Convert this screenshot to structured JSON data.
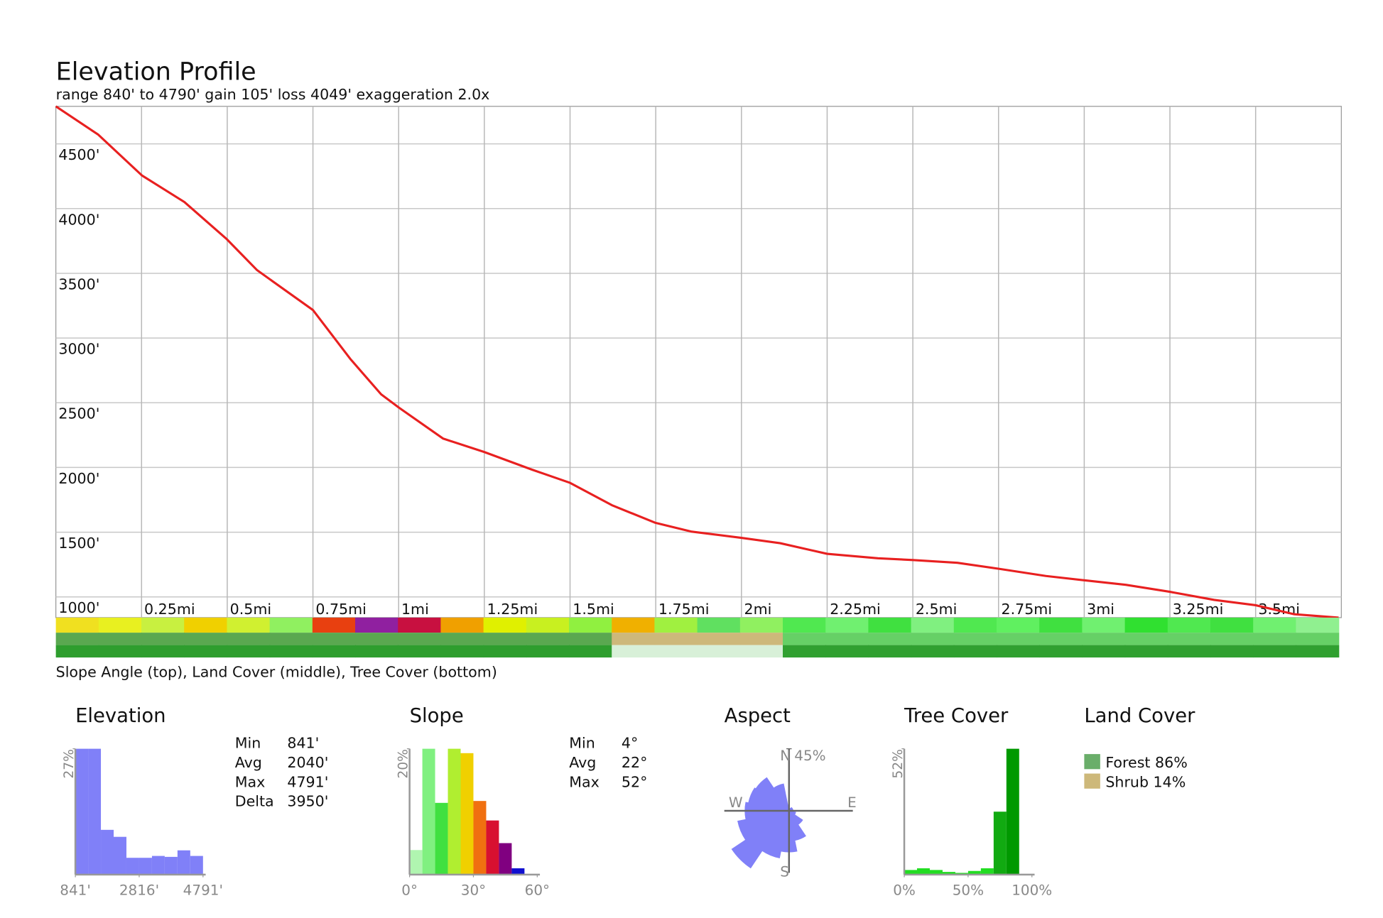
{
  "chart_data": [
    {
      "type": "line",
      "title": "Elevation Profile",
      "subtitle": "range 840' to 4790'  gain 105'  loss 4049'  exaggeration 2.0x",
      "x": [
        0,
        0.124,
        0.251,
        0.375,
        0.499,
        0.587,
        0.75,
        0.859,
        0.949,
        1.001,
        1.13,
        1.249,
        1.389,
        1.5,
        1.622,
        1.748,
        1.855,
        2.0,
        2.113,
        2.25,
        2.398,
        2.5,
        2.63,
        2.751,
        2.888,
        3.0,
        3.121,
        3.25,
        3.379,
        3.5,
        3.611,
        3.742
      ],
      "values": [
        4790,
        4571,
        4256,
        4051,
        3763,
        3524,
        3216,
        2839,
        2565,
        2462,
        2223,
        2120,
        1983,
        1881,
        1709,
        1573,
        1504,
        1456,
        1415,
        1333,
        1299,
        1285,
        1264,
        1217,
        1162,
        1128,
        1093,
        1039,
        977,
        936,
        867,
        840
      ],
      "color": "#e82020",
      "xlim": [
        0,
        3.75
      ],
      "xticks": [
        {
          "value": 0.25,
          "label": "0.25mi"
        },
        {
          "value": 0.5,
          "label": "0.5mi"
        },
        {
          "value": 0.75,
          "label": "0.75mi"
        },
        {
          "value": 1,
          "label": "1mi"
        },
        {
          "value": 1.25,
          "label": "1.25mi"
        },
        {
          "value": 1.5,
          "label": "1.5mi"
        },
        {
          "value": 1.75,
          "label": "1.75mi"
        },
        {
          "value": 2,
          "label": "2mi"
        },
        {
          "value": 2.25,
          "label": "2.25mi"
        },
        {
          "value": 2.5,
          "label": "2.5mi"
        },
        {
          "value": 2.75,
          "label": "2.75mi"
        },
        {
          "value": 3,
          "label": "3mi"
        },
        {
          "value": 3.25,
          "label": "3.25mi"
        },
        {
          "value": 3.5,
          "label": "3.5mi"
        }
      ],
      "ylim": [
        840,
        4790
      ],
      "yticks": [
        {
          "value": 1000,
          "label": "1000'"
        },
        {
          "value": 1500,
          "label": "1500'"
        },
        {
          "value": 2000,
          "label": "2000'"
        },
        {
          "value": 2500,
          "label": "2500'"
        },
        {
          "value": 3000,
          "label": "3000'"
        },
        {
          "value": 3500,
          "label": "3500'"
        },
        {
          "value": 4000,
          "label": "4000'"
        },
        {
          "value": 4500,
          "label": "4500'"
        }
      ],
      "grid": true,
      "strips": [
        [
          "#f0e020",
          "#e8f020",
          "#c8f040",
          "#f0d000",
          "#d0f030",
          "#90f060",
          "#e84010",
          "#9020a0",
          "#c81040",
          "#f0a000",
          "#e0f000",
          "#c8f020",
          "#90f040",
          "#f0b000",
          "#a0f040",
          "#60e060",
          "#90f060",
          "#50e850",
          "#70f070",
          "#40e040",
          "#80f080",
          "#50e850",
          "#60f060",
          "#40e040",
          "#70f070",
          "#30e030",
          "#50e850",
          "#40e040",
          "#70f070",
          "#90f090"
        ],
        [
          "#5aa850",
          "#5aa850",
          "#5aa850",
          "#5aa850",
          "#5aa850",
          "#5aa850",
          "#5aa850",
          "#5aa850",
          "#5aa850",
          "#5aa850",
          "#5aa850",
          "#5aa850",
          "#5aa850",
          "#cdb87a",
          "#cdb87a",
          "#cdb87a",
          "#cdb87a",
          "#66d066",
          "#66d066",
          "#66d066",
          "#66d066",
          "#66d066",
          "#66d066",
          "#66d066",
          "#66d066",
          "#66d066",
          "#66d066",
          "#66d066",
          "#66d066",
          "#66d066"
        ],
        [
          "#2e9e2e",
          "#2e9e2e",
          "#2e9e2e",
          "#2e9e2e",
          "#2e9e2e",
          "#2e9e2e",
          "#2e9e2e",
          "#2e9e2e",
          "#2e9e2e",
          "#2e9e2e",
          "#2e9e2e",
          "#2e9e2e",
          "#2e9e2e",
          "#d8f0d8",
          "#d8f0d8",
          "#d8f0d8",
          "#d8f0d8",
          "#30a030",
          "#30a030",
          "#30a030",
          "#30a030",
          "#30a030",
          "#30a030",
          "#30a030",
          "#30a030",
          "#30a030",
          "#30a030",
          "#30a030",
          "#30a030",
          "#30a030"
        ]
      ],
      "strip_caption": "Slope Angle (top), Land Cover (middle), Tree Cover (bottom)"
    },
    {
      "type": "histogram",
      "title": "Elevation",
      "bins": [
        841,
        1236,
        1631,
        2026,
        2421,
        2816,
        3211,
        3606,
        4001,
        4396,
        4791
      ],
      "values": [
        27,
        27,
        9.6,
        8.1,
        3.6,
        3.6,
        4.0,
        3.8,
        5.2,
        4.0
      ],
      "color": "#8080f8",
      "xlim": [
        841,
        4791
      ],
      "xticks": [
        {
          "value": 841,
          "label": "841'"
        },
        {
          "value": 2816,
          "label": "2816'"
        },
        {
          "value": 4791,
          "label": "4791'"
        }
      ],
      "ylim": [
        0,
        27
      ],
      "yticks": [
        {
          "value": 27,
          "label": "27%"
        }
      ],
      "stats": [
        [
          "Min",
          "841'"
        ],
        [
          "Avg",
          "2040'"
        ],
        [
          "Max",
          "4791'"
        ],
        [
          "Delta",
          "3950'"
        ]
      ]
    },
    {
      "type": "histogram",
      "title": "Slope",
      "bins": [
        0,
        6,
        12,
        18,
        24,
        30,
        36,
        42,
        48,
        54,
        60
      ],
      "values": [
        3.9,
        20,
        11.4,
        20,
        19.3,
        11.7,
        8.6,
        5,
        1,
        0
      ],
      "colors": [
        "#b0f5b0",
        "#80f080",
        "#40e040",
        "#b0ee30",
        "#f0d000",
        "#f07010",
        "#d81030",
        "#800080",
        "#1010d0",
        "#888888"
      ],
      "xlim": [
        0,
        60
      ],
      "xticks": [
        {
          "value": 0,
          "label": "0°"
        },
        {
          "value": 30,
          "label": "30°"
        },
        {
          "value": 60,
          "label": "60°"
        }
      ],
      "ylim": [
        0,
        20
      ],
      "yticks": [
        {
          "value": 20,
          "label": "20%"
        }
      ],
      "stats": [
        [
          "Min",
          "4°"
        ],
        [
          "Avg",
          "22°"
        ],
        [
          "Max",
          "52°"
        ]
      ]
    },
    {
      "type": "rose",
      "title": "Aspect",
      "values": [
        2,
        2,
        3,
        3,
        2,
        5,
        12,
        22,
        30,
        35,
        50,
        38,
        32,
        30,
        29,
        20
      ],
      "color": "#8080f8",
      "rlim": [
        0,
        45
      ],
      "rticks": [
        {
          "value": 45,
          "label": "45%"
        }
      ],
      "compass": [
        "N",
        "E",
        "S",
        "W"
      ]
    },
    {
      "type": "histogram",
      "title": "Tree Cover",
      "bins": [
        0,
        10,
        20,
        30,
        40,
        50,
        60,
        70,
        80,
        90,
        100
      ],
      "values": [
        1.9,
        2.6,
        1.9,
        1.1,
        0.7,
        1.5,
        2.6,
        26,
        52,
        0
      ],
      "colors": [
        "#22dd22",
        "#22dd22",
        "#22dd22",
        "#22dd22",
        "#22dd22",
        "#22dd22",
        "#22dd22",
        "#11aa11",
        "#009900",
        "#009900"
      ],
      "xlim": [
        0,
        100
      ],
      "xticks": [
        {
          "value": 0,
          "label": "0%"
        },
        {
          "value": 50,
          "label": "50%"
        },
        {
          "value": 100,
          "label": "100%"
        }
      ],
      "ylim": [
        0,
        52
      ],
      "yticks": [
        {
          "value": 52,
          "label": "52%"
        }
      ]
    },
    {
      "type": "legend",
      "title": "Land Cover",
      "series": [
        {
          "name": "Forest 86%",
          "color": "#6aae6a",
          "values": [
            86
          ]
        },
        {
          "name": "Shrub 14%",
          "color": "#cdb87a",
          "values": [
            14
          ]
        }
      ]
    }
  ]
}
